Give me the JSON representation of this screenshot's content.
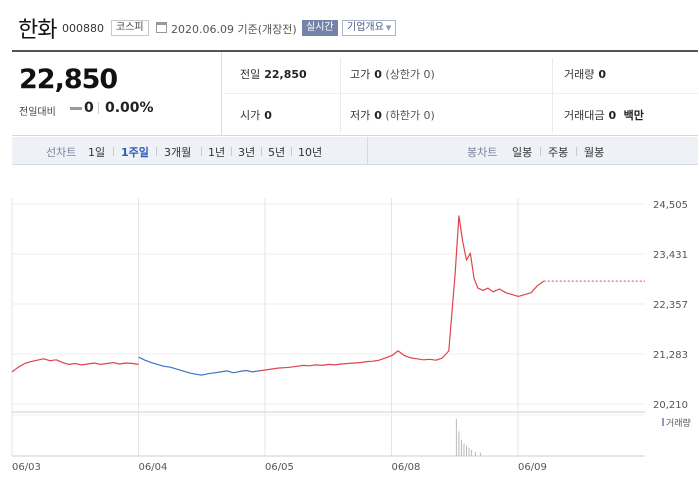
{
  "header": {
    "company_name": "한화",
    "stock_code": "000880",
    "market": "코스피",
    "date_basis": "2020.06.09 기준(개장전)",
    "realtime_label": "실시간",
    "company_overview_label": "기업개요"
  },
  "price": {
    "current": "22,850",
    "change_label": "전일대비",
    "change_value": "0",
    "change_percent": "0.00%"
  },
  "stats": {
    "prev_close": {
      "label": "전일",
      "value": "22,850"
    },
    "high": {
      "label": "고가",
      "value": "0",
      "sub": "(상한가 0)"
    },
    "volume": {
      "label": "거래량",
      "value": "0"
    },
    "open": {
      "label": "시가",
      "value": "0"
    },
    "low": {
      "label": "저가",
      "value": "0",
      "sub": "(하한가 0)"
    },
    "trade_value": {
      "label": "거래대금",
      "value": "0",
      "unit": "백만"
    }
  },
  "tabs": {
    "line_label": "선차트",
    "line_items": [
      "1일",
      "1주일",
      "3개월",
      "1년",
      "3년",
      "5년",
      "10년"
    ],
    "line_active": "1주일",
    "candle_label": "봉차트",
    "candle_items": [
      "일봉",
      "주봉",
      "월봉"
    ]
  },
  "colors": {
    "up_line": "#e0434b",
    "down_line": "#3d73c5",
    "realtime_badge": "#7484a8",
    "active_tab": "#2d5bb9"
  },
  "chart_data": {
    "type": "line",
    "y_ticks": [
      "24,505",
      "23,431",
      "22,357",
      "21,283",
      "20,210"
    ],
    "ylim": [
      20210,
      24505
    ],
    "x_ticks": [
      "06/03",
      "06/04",
      "06/05",
      "06/08",
      "06/09"
    ],
    "reference_price": 22850,
    "volume_label": "거래량",
    "grid": true,
    "series": [
      {
        "color": "up",
        "points": [
          [
            0.0,
            20900
          ],
          [
            0.5,
            21000
          ],
          [
            1.0,
            21080
          ],
          [
            1.5,
            21120
          ],
          [
            2.0,
            21150
          ],
          [
            2.5,
            21180
          ],
          [
            3.0,
            21140
          ],
          [
            3.5,
            21160
          ],
          [
            4.0,
            21100
          ],
          [
            4.5,
            21060
          ],
          [
            5.0,
            21080
          ],
          [
            5.5,
            21050
          ],
          [
            6.0,
            21070
          ],
          [
            6.5,
            21090
          ],
          [
            7.0,
            21060
          ],
          [
            7.5,
            21080
          ],
          [
            8.0,
            21100
          ],
          [
            8.5,
            21070
          ],
          [
            9.0,
            21090
          ],
          [
            9.5,
            21080
          ],
          [
            10.0,
            21060
          ]
        ]
      },
      {
        "color": "down",
        "points": [
          [
            10.0,
            21220
          ],
          [
            10.5,
            21150
          ],
          [
            11.0,
            21100
          ],
          [
            11.5,
            21060
          ],
          [
            12.0,
            21020
          ],
          [
            12.5,
            21000
          ],
          [
            13.0,
            20960
          ],
          [
            13.5,
            20920
          ],
          [
            14.0,
            20880
          ],
          [
            14.5,
            20850
          ],
          [
            15.0,
            20830
          ],
          [
            15.5,
            20860
          ],
          [
            16.0,
            20880
          ],
          [
            16.5,
            20900
          ],
          [
            17.0,
            20920
          ],
          [
            17.5,
            20880
          ],
          [
            18.0,
            20910
          ],
          [
            18.5,
            20930
          ],
          [
            19.0,
            20900
          ],
          [
            19.5,
            20920
          ]
        ]
      },
      {
        "color": "up",
        "points": [
          [
            19.5,
            20920
          ],
          [
            20.0,
            20940
          ],
          [
            20.5,
            20960
          ],
          [
            21.0,
            20980
          ],
          [
            21.5,
            20990
          ],
          [
            22.0,
            21000
          ],
          [
            22.5,
            21020
          ],
          [
            23.0,
            21040
          ],
          [
            23.5,
            21030
          ],
          [
            24.0,
            21050
          ],
          [
            24.5,
            21040
          ],
          [
            25.0,
            21060
          ],
          [
            25.5,
            21050
          ],
          [
            26.0,
            21070
          ],
          [
            26.5,
            21080
          ],
          [
            27.0,
            21090
          ],
          [
            27.5,
            21100
          ],
          [
            28.0,
            21120
          ],
          [
            28.5,
            21130
          ],
          [
            29.0,
            21150
          ],
          [
            29.5,
            21200
          ],
          [
            30.0,
            21250
          ],
          [
            30.5,
            21350
          ],
          [
            31.0,
            21250
          ],
          [
            31.5,
            21200
          ],
          [
            32.0,
            21180
          ],
          [
            32.5,
            21160
          ],
          [
            33.0,
            21170
          ],
          [
            33.5,
            21150
          ],
          [
            34.0,
            21200
          ],
          [
            34.5,
            21350
          ],
          [
            35.0,
            23000
          ],
          [
            35.3,
            24250
          ],
          [
            35.6,
            23700
          ],
          [
            35.9,
            23300
          ],
          [
            36.2,
            23450
          ],
          [
            36.5,
            22900
          ],
          [
            36.8,
            22700
          ],
          [
            37.2,
            22650
          ],
          [
            37.6,
            22700
          ],
          [
            38.0,
            22620
          ],
          [
            38.5,
            22680
          ],
          [
            39.0,
            22600
          ],
          [
            39.5,
            22560
          ],
          [
            40.0,
            22520
          ],
          [
            40.5,
            22560
          ],
          [
            41.0,
            22600
          ],
          [
            41.5,
            22750
          ],
          [
            42.0,
            22850
          ]
        ]
      }
    ]
  }
}
